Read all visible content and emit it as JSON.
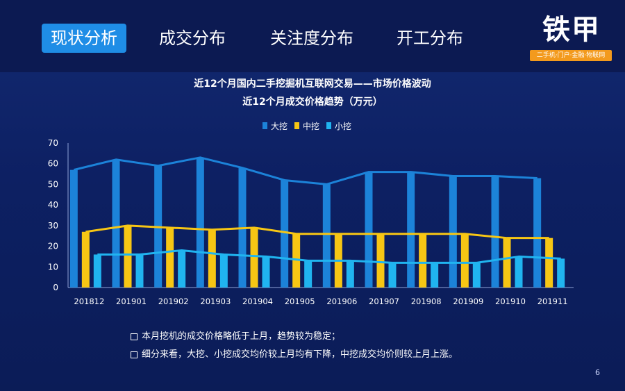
{
  "nav": {
    "tabs": [
      {
        "label": "现状分析",
        "active": true
      },
      {
        "label": "成交分布",
        "active": false
      },
      {
        "label": "关注度分布",
        "active": false
      },
      {
        "label": "开工分布",
        "active": false
      }
    ]
  },
  "logo": {
    "name": "铁甲",
    "tagline": "二手机·门户·金融·物联网",
    "accent_color": "#f39a1d"
  },
  "title_line1": "近12个月国内二手挖掘机互联网交易——市场价格波动",
  "title_line2": "近12个月成交价格趋势（万元）",
  "chart_data": {
    "type": "bar",
    "title": "近12个月成交价格趋势（万元）",
    "categories": [
      "201812",
      "201901",
      "201902",
      "201903",
      "201904",
      "201905",
      "201906",
      "201907",
      "201908",
      "201909",
      "201910",
      "201911"
    ],
    "series": [
      {
        "name": "大挖",
        "color": "#1c83d9",
        "values": [
          57,
          62,
          59,
          63,
          58,
          52,
          50,
          56,
          56,
          54,
          54,
          53
        ]
      },
      {
        "name": "中挖",
        "color": "#f7c614",
        "values": [
          27,
          30,
          29,
          28,
          29,
          26,
          26,
          26,
          26,
          26,
          24,
          24
        ]
      },
      {
        "name": "小挖",
        "color": "#20b4f0",
        "values": [
          16,
          16,
          18,
          16,
          15,
          13,
          13,
          12,
          12,
          12,
          15,
          14
        ]
      }
    ],
    "line_series": [
      {
        "name": "大挖",
        "color": "#1c83d9",
        "values": [
          57,
          62,
          59,
          63,
          58,
          52,
          50,
          56,
          56,
          54,
          54,
          53
        ]
      },
      {
        "name": "中挖",
        "color": "#f7c614",
        "values": [
          27,
          30,
          29,
          28,
          29,
          26,
          26,
          26,
          26,
          26,
          24,
          24
        ]
      },
      {
        "name": "小挖",
        "color": "#20b4f0",
        "values": [
          16,
          16,
          18,
          16,
          15,
          13,
          13,
          12,
          12,
          12,
          15,
          14
        ]
      }
    ],
    "ylim": [
      0,
      70
    ],
    "yticks": [
      0,
      10,
      20,
      30,
      40,
      50,
      60,
      70
    ],
    "legend_position": "top-center",
    "grid": false
  },
  "notes": [
    "本月挖机的成交价格略低于上月，趋势较为稳定；",
    "细分来看，大挖、小挖成交均价较上月均有下降，中挖成交均价则较上月上涨。"
  ],
  "page_number": "6"
}
